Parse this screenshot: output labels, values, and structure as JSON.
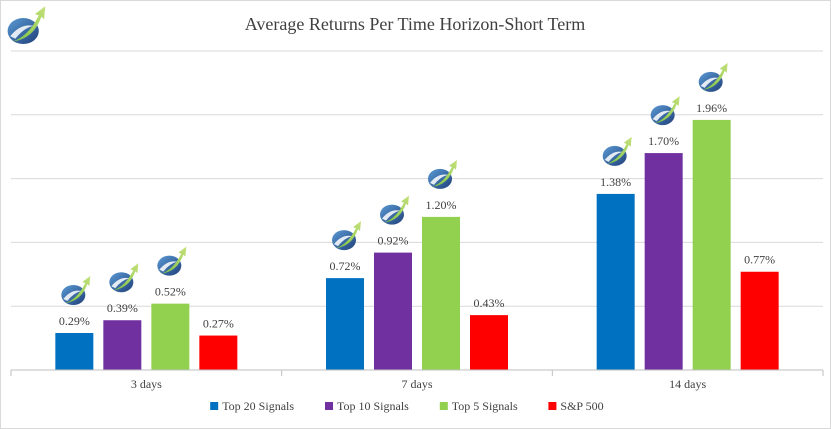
{
  "chart_data": {
    "type": "bar",
    "title": "Average Returns Per Time Horizon-Short Term",
    "xlabel": "",
    "ylabel": "",
    "categories": [
      "3 days",
      "7 days",
      "14 days"
    ],
    "series": [
      {
        "name": "Top 20 Signals",
        "color": "#0070c0",
        "values": [
          0.29,
          0.72,
          1.38
        ],
        "labels": [
          "0.29%",
          "0.72%",
          "1.38%"
        ]
      },
      {
        "name": "Top 10 Signals",
        "color": "#7030a0",
        "values": [
          0.39,
          0.92,
          1.7
        ],
        "labels": [
          "0.39%",
          "0.92%",
          "1.70%"
        ]
      },
      {
        "name": "Top 5 Signals",
        "color": "#92d050",
        "values": [
          0.52,
          1.2,
          1.96
        ],
        "labels": [
          "0.52%",
          "1.20%",
          "1.96%"
        ]
      },
      {
        "name": "S&P 500",
        "color": "#ff0000",
        "values": [
          0.27,
          0.43,
          0.77
        ],
        "labels": [
          "0.27%",
          "0.43%",
          "0.77%"
        ]
      }
    ],
    "ylim": [
      0,
      2.5
    ],
    "grid": true,
    "legend": "bottom",
    "logo_marks": "above each signal-series bar and at top-left"
  }
}
